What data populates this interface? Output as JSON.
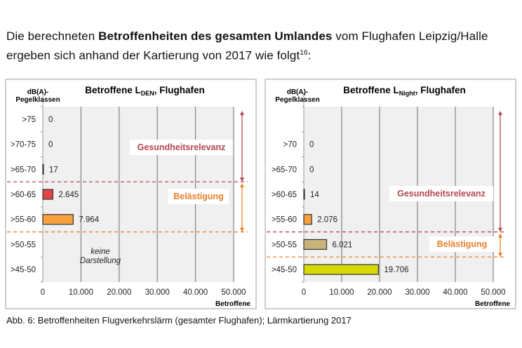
{
  "intro": {
    "part1": "Die berechneten ",
    "bold": "Betroffenheiten des gesamten Umlandes",
    "part2": " vom Flughafen Leipzig/Halle ergeben sich anhand der Kartierung von 2017 wie folgt",
    "footnote": "16",
    "end": ":"
  },
  "caption": "Abb. 6: Betroffenheiten Flugverkehrslärm (gesamter Flughafen); Lärmkartierung 2017",
  "colors": {
    "health": "#b5474f",
    "annoyance": "#e8822a",
    "grid": "#8a8a8a",
    "plot_bg": "#f0f0f0"
  },
  "chart_data": [
    {
      "type": "bar",
      "orientation": "horizontal",
      "title_parts": [
        "Betroffene L",
        "DEN",
        ", Flughafen"
      ],
      "ylabel_lines": [
        "dB(A)-",
        "Pegelklassen"
      ],
      "xlabel": "Betroffene",
      "xlim": [
        0,
        50000
      ],
      "xticks": [
        "0",
        "10.000",
        "20.000",
        "30.000",
        "40.000",
        "50.000"
      ],
      "grid": true,
      "categories": [
        ">75",
        ">70-75",
        ">65-70",
        ">60-65",
        ">55-60",
        ">50-55",
        ">45-50"
      ],
      "values": [
        0,
        0,
        17,
        2645,
        7964,
        null,
        null
      ],
      "value_labels": [
        "0",
        "0",
        "17",
        "2.645",
        "7.964",
        "",
        ""
      ],
      "bar_colors": [
        "#555555",
        "#555555",
        "#555555",
        "#e04444",
        "#f9a040",
        null,
        null
      ],
      "annotation_lines": [
        "keine",
        "Darstellung"
      ],
      "zones": [
        {
          "label": "Gesundheitsrelevanz",
          "color": "#b5474f",
          "from": ">75",
          "to": ">65-70"
        },
        {
          "label": "Belästigung",
          "color": "#e8822a",
          "from": ">60-65",
          "to": ">55-60"
        }
      ]
    },
    {
      "type": "bar",
      "orientation": "horizontal",
      "title_parts": [
        "Betroffene L",
        "Night",
        ", Flughafen"
      ],
      "ylabel_lines": [
        "dB(A)-",
        "Pegelklassen"
      ],
      "xlabel": "Betroffene",
      "xlim": [
        0,
        50000
      ],
      "xticks": [
        "0",
        "10.000",
        "20.000",
        "30.000",
        "40.000",
        "50.000"
      ],
      "grid": true,
      "categories": [
        "",
        ">70",
        ">65-70",
        ">60-65",
        ">55-60",
        ">50-55",
        ">45-50"
      ],
      "values": [
        null,
        0,
        0,
        14,
        2076,
        6021,
        19706
      ],
      "value_labels": [
        "",
        "0",
        "0",
        "14",
        "2.076",
        "6.021",
        "19.706"
      ],
      "bar_colors": [
        null,
        "#555555",
        "#555555",
        "#555555",
        "#f9a040",
        "#c9b57c",
        "#d6d800"
      ],
      "annotation_lines": [],
      "zones": [
        {
          "label": "Gesundheitsrelevanz",
          "color": "#b5474f",
          "from": "",
          "to": ">55-60"
        },
        {
          "label": "Belästigung",
          "color": "#e8822a",
          "from": ">50-55",
          "to": ">50-55"
        }
      ]
    }
  ]
}
